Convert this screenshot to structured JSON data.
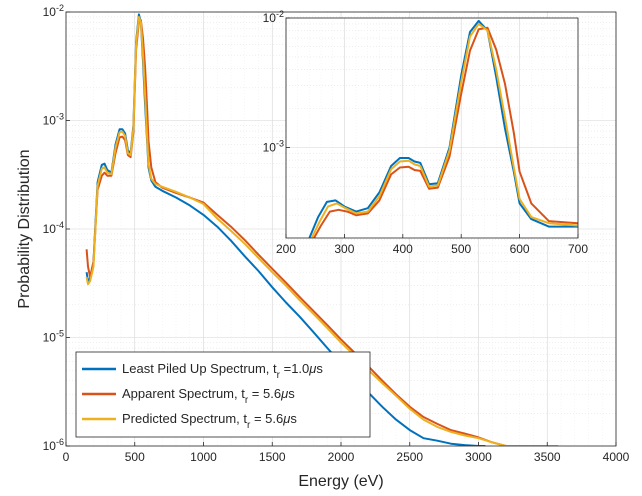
{
  "chart_data": [
    {
      "type": "line",
      "name": "main",
      "xlabel": "Energy (eV)",
      "ylabel": "Probability Distribution",
      "xlim": [
        0,
        4000
      ],
      "ylim": [
        1e-06,
        0.01
      ],
      "yscale": "log",
      "grid": true,
      "x_ticks": [
        0,
        500,
        1000,
        1500,
        2000,
        2500,
        3000,
        3500,
        4000
      ],
      "x_tick_labels": [
        "0",
        "500",
        "1000",
        "1500",
        "2000",
        "2500",
        "3000",
        "3500",
        "4000"
      ],
      "y_ticks": [
        1e-06,
        1e-05,
        0.0001,
        0.001,
        0.01
      ],
      "y_tick_labels": [
        {
          "base": "10",
          "exp": "-6"
        },
        {
          "base": "10",
          "exp": "-5"
        },
        {
          "base": "10",
          "exp": "-4"
        },
        {
          "base": "10",
          "exp": "-3"
        },
        {
          "base": "10",
          "exp": "-2"
        }
      ],
      "legend_position": "bottom-left",
      "series": [
        {
          "name": "Least Piled Up Spectrum, t_r =1.0µs",
          "legend": {
            "main": "Least Piled Up Spectrum, t",
            "sub": "r",
            "rest": " =1.0",
            "mu": "μ",
            "unit": "s"
          },
          "color": "#0072BD",
          "x": [
            150,
            160,
            175,
            200,
            230,
            260,
            280,
            300,
            330,
            360,
            390,
            410,
            430,
            450,
            470,
            490,
            510,
            530,
            545,
            560,
            575,
            590,
            600,
            620,
            650,
            700,
            800,
            900,
            1000,
            1100,
            1200,
            1300,
            1400,
            1500,
            1600,
            1700,
            1800,
            1900,
            2000,
            2100,
            2200,
            2300,
            2400,
            2500,
            2600,
            2700,
            2800,
            2900,
            3000,
            3050
          ],
          "y": [
            4e-05,
            3.3e-05,
            3.5e-05,
            5e-05,
            0.00027,
            0.00039,
            0.0004,
            0.00035,
            0.00033,
            0.0006,
            0.00083,
            0.00083,
            0.00076,
            0.00053,
            0.0005,
            0.0009,
            0.0053,
            0.0095,
            0.008,
            0.0035,
            0.0014,
            0.00065,
            0.00037,
            0.00028,
            0.000245,
            0.000225,
            0.000195,
            0.000165,
            0.000135,
            0.000105,
            7.8e-05,
            5.6e-05,
            4.1e-05,
            2.9e-05,
            2.1e-05,
            1.55e-05,
            1.12e-05,
            8e-06,
            5.8e-06,
            4.2e-06,
            3.1e-06,
            2.3e-06,
            1.75e-06,
            1.4e-06,
            1.18e-06,
            1.12e-06,
            1.05e-06,
            1.02e-06,
            1e-06,
            1e-06
          ]
        },
        {
          "name": "Apparent Spectrum, t_r = 5.6µs",
          "legend": {
            "main": "Apparent Spectrum, t",
            "sub": "r",
            "rest": " = 5.6",
            "mu": "μ",
            "unit": "s"
          },
          "color": "#D95319",
          "x": [
            150,
            160,
            175,
            200,
            230,
            260,
            280,
            300,
            330,
            360,
            390,
            410,
            430,
            450,
            470,
            490,
            510,
            530,
            545,
            560,
            575,
            590,
            600,
            620,
            650,
            700,
            800,
            900,
            1000,
            1100,
            1200,
            1300,
            1400,
            1500,
            1600,
            1700,
            1800,
            1900,
            2000,
            2100,
            2200,
            2300,
            2400,
            2500,
            2600,
            2700,
            2800,
            2900,
            3000,
            3100,
            3200,
            3300,
            3400
          ],
          "y": [
            6.5e-05,
            4.5e-05,
            3.6e-05,
            5e-05,
            0.00023,
            0.00031,
            0.00033,
            0.00031,
            0.00031,
            0.0005,
            0.0007,
            0.00071,
            0.00066,
            0.00048,
            0.00046,
            0.00078,
            0.0045,
            0.0082,
            0.0084,
            0.0057,
            0.0031,
            0.0013,
            0.00065,
            0.00037,
            0.00027,
            0.00024,
            0.000215,
            0.000195,
            0.000175,
            0.000135,
            0.000105,
            7.9e-05,
            5.8e-05,
            4.3e-05,
            3.2e-05,
            2.35e-05,
            1.75e-05,
            1.3e-05,
            9.6e-06,
            7.2e-06,
            5.4e-06,
            4e-06,
            3e-06,
            2.3e-06,
            1.85e-06,
            1.6e-06,
            1.4e-06,
            1.3e-06,
            1.2e-06,
            1.08e-06,
            1e-06,
            1e-06,
            1e-06
          ]
        },
        {
          "name": "Predicted Spectrum, t_r = 5.6µs",
          "legend": {
            "main": "Predicted Spectrum, t",
            "sub": "r",
            "rest": " = 5.6",
            "mu": "μ",
            "unit": "s"
          },
          "color": "#EDB120",
          "x": [
            150,
            160,
            175,
            200,
            230,
            260,
            280,
            300,
            330,
            360,
            390,
            410,
            430,
            450,
            470,
            490,
            510,
            530,
            545,
            560,
            575,
            590,
            600,
            620,
            650,
            700,
            800,
            900,
            1000,
            1100,
            1200,
            1300,
            1400,
            1500,
            1600,
            1700,
            1800,
            1900,
            2000,
            2100,
            2200,
            2300,
            2400,
            2500,
            2600,
            2700,
            2800,
            2900,
            3000,
            3100,
            3200,
            3300,
            3400,
            3500,
            3580
          ],
          "y": [
            3.6e-05,
            3.1e-05,
            3.3e-05,
            4.5e-05,
            0.00025,
            0.00036,
            0.00037,
            0.00033,
            0.00032,
            0.00056,
            0.00078,
            0.00079,
            0.00072,
            0.0005,
            0.00048,
            0.00085,
            0.005,
            0.009,
            0.008,
            0.004,
            0.0017,
            0.0007,
            0.0004,
            0.00029,
            0.00026,
            0.000245,
            0.00022,
            0.000195,
            0.00017,
            0.000125,
            9.6e-05,
            7.3e-05,
            5.4e-05,
            4e-05,
            3e-05,
            2.2e-05,
            1.65e-05,
            1.22e-05,
            9e-06,
            6.8e-06,
            5e-06,
            3.8e-06,
            2.9e-06,
            2.2e-06,
            1.75e-06,
            1.5e-06,
            1.35e-06,
            1.25e-06,
            1.18e-06,
            1.08e-06,
            1e-06,
            1e-06,
            1e-06,
            1e-06,
            1e-06
          ]
        }
      ]
    },
    {
      "type": "line",
      "name": "inset",
      "xlim": [
        200,
        700
      ],
      "ylim": [
        0.0002,
        0.01
      ],
      "yscale": "log",
      "grid": true,
      "x_ticks": [
        200,
        300,
        400,
        500,
        600,
        700
      ],
      "x_tick_labels": [
        "200",
        "300",
        "400",
        "500",
        "600",
        "700"
      ],
      "y_ticks": [
        0.001,
        0.01
      ],
      "y_tick_labels": [
        {
          "base": "10",
          "exp": "-3"
        },
        {
          "base": "10",
          "exp": "-2"
        }
      ],
      "series": [
        {
          "color": "#0072BD",
          "x": [
            240,
            255,
            270,
            285,
            300,
            320,
            340,
            360,
            380,
            395,
            410,
            420,
            430,
            445,
            460,
            480,
            500,
            515,
            530,
            545,
            560,
            575,
            590,
            600,
            620,
            650,
            700
          ],
          "y": [
            0.0002,
            0.00029,
            0.00038,
            0.00039,
            0.00035,
            0.00032,
            0.00034,
            0.00045,
            0.00072,
            0.00083,
            0.00083,
            0.00078,
            0.00076,
            0.00052,
            0.00053,
            0.001,
            0.0036,
            0.0078,
            0.0095,
            0.008,
            0.0035,
            0.0014,
            0.00065,
            0.00037,
            0.00028,
            0.000245,
            0.000245
          ]
        },
        {
          "color": "#D95319",
          "x": [
            248,
            260,
            275,
            290,
            305,
            320,
            340,
            360,
            380,
            395,
            410,
            420,
            430,
            445,
            460,
            480,
            500,
            515,
            530,
            545,
            560,
            575,
            590,
            600,
            620,
            650,
            700
          ],
          "y": [
            0.0002,
            0.00025,
            0.00032,
            0.00033,
            0.00032,
            0.0003,
            0.00031,
            0.00039,
            0.00062,
            0.0007,
            0.00071,
            0.00067,
            0.00066,
            0.00048,
            0.00049,
            0.00085,
            0.0026,
            0.0056,
            0.0082,
            0.0084,
            0.0057,
            0.0031,
            0.0013,
            0.00065,
            0.00037,
            0.00027,
            0.00026
          ]
        },
        {
          "color": "#EDB120",
          "x": [
            244,
            258,
            272,
            287,
            302,
            320,
            340,
            360,
            380,
            395,
            410,
            420,
            430,
            445,
            460,
            480,
            500,
            515,
            530,
            545,
            560,
            575,
            590,
            600,
            620,
            650,
            700
          ],
          "y": [
            0.0002,
            0.00027,
            0.00035,
            0.00037,
            0.00034,
            0.00031,
            0.00032,
            0.00042,
            0.00068,
            0.00078,
            0.00079,
            0.00074,
            0.00072,
            0.0005,
            0.00051,
            0.00095,
            0.0032,
            0.0072,
            0.009,
            0.008,
            0.004,
            0.0017,
            0.0007,
            0.0004,
            0.00029,
            0.00026,
            0.00025
          ]
        }
      ]
    }
  ]
}
